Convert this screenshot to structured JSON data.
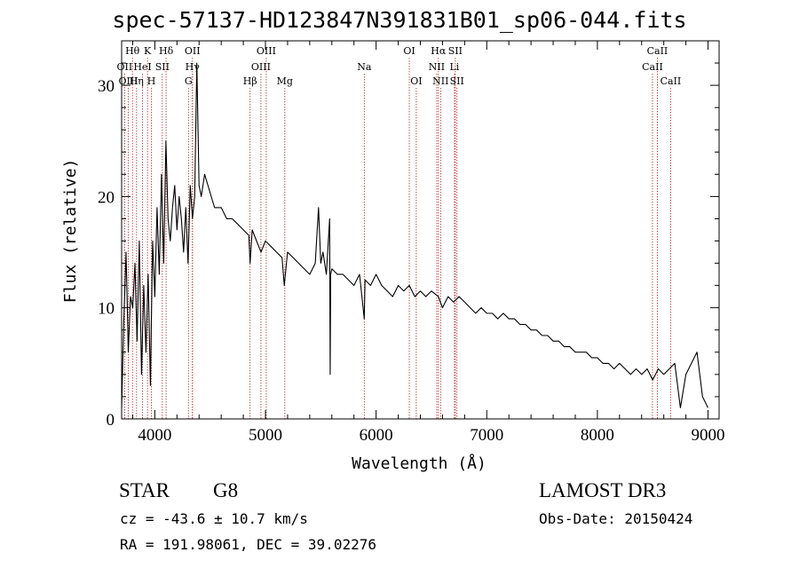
{
  "chart_data": {
    "type": "line",
    "title": "spec-57137-HD123847N391831B01_sp06-044.fits",
    "xlabel": "Wavelength (Å)",
    "ylabel": "Flux (relative)",
    "xlim": [
      3700,
      9100
    ],
    "ylim": [
      0,
      34
    ],
    "xticks": [
      4000,
      5000,
      6000,
      7000,
      8000,
      9000
    ],
    "xtick_labels": [
      "4000",
      "5000",
      "6000",
      "7000",
      "8000",
      "9000"
    ],
    "yticks": [
      0,
      10,
      20,
      30
    ],
    "ytick_labels": [
      "0",
      "10",
      "20",
      "30"
    ],
    "grid": false,
    "series": [
      {
        "name": "flux",
        "x": [
          3700,
          3720,
          3740,
          3760,
          3780,
          3800,
          3820,
          3840,
          3860,
          3880,
          3900,
          3920,
          3940,
          3960,
          3980,
          4000,
          4020,
          4040,
          4060,
          4080,
          4100,
          4120,
          4140,
          4160,
          4180,
          4200,
          4220,
          4240,
          4260,
          4280,
          4300,
          4320,
          4340,
          4360,
          4380,
          4400,
          4420,
          4450,
          4480,
          4510,
          4540,
          4570,
          4600,
          4650,
          4700,
          4750,
          4800,
          4850,
          4861,
          4880,
          4920,
          4960,
          5000,
          5050,
          5100,
          5150,
          5170,
          5200,
          5250,
          5300,
          5350,
          5400,
          5450,
          5480,
          5500,
          5520,
          5550,
          5580,
          5585,
          5590,
          5600,
          5650,
          5700,
          5750,
          5800,
          5850,
          5893,
          5900,
          5950,
          6000,
          6050,
          6100,
          6150,
          6200,
          6250,
          6300,
          6350,
          6400,
          6450,
          6500,
          6563,
          6600,
          6650,
          6700,
          6750,
          6800,
          6850,
          6900,
          6950,
          7000,
          7050,
          7100,
          7150,
          7200,
          7250,
          7300,
          7350,
          7400,
          7450,
          7500,
          7550,
          7600,
          7650,
          7700,
          7750,
          7800,
          7850,
          7900,
          7950,
          8000,
          8050,
          8100,
          8150,
          8200,
          8250,
          8300,
          8350,
          8400,
          8450,
          8500,
          8550,
          8600,
          8650,
          8700,
          8750,
          8800,
          8850,
          8900,
          8950,
          9000
        ],
        "values": [
          1,
          9,
          15,
          6,
          11,
          10,
          14,
          7,
          16,
          4,
          12,
          6,
          13,
          3,
          16,
          11,
          19,
          13,
          22,
          14,
          25,
          18,
          16,
          19,
          21,
          17,
          20,
          18,
          15,
          19,
          14,
          21,
          18,
          20,
          32,
          21,
          20,
          22,
          21,
          20,
          19,
          19,
          19,
          18,
          18,
          17.5,
          17,
          16.5,
          14,
          17,
          16,
          15,
          16,
          15.5,
          15,
          14.5,
          12,
          15,
          14.5,
          14,
          13.5,
          13,
          14,
          19,
          14,
          15,
          13,
          18,
          4,
          13,
          13.5,
          13,
          13,
          12.5,
          12,
          13,
          9,
          12.5,
          12,
          13,
          12,
          11.5,
          11,
          12,
          11.5,
          12,
          11,
          11.5,
          11,
          11.5,
          11,
          10,
          11,
          10.5,
          11,
          10.5,
          10,
          9.5,
          10,
          9.5,
          9.5,
          9,
          9.5,
          9,
          9,
          8.5,
          8.5,
          8,
          8,
          7.5,
          7.5,
          7,
          7,
          6.5,
          6.5,
          6,
          6,
          6,
          5.5,
          5.5,
          5,
          5,
          4.5,
          5,
          4.5,
          4,
          4.5,
          4,
          4.5,
          3.5,
          4.5,
          4,
          4.5,
          5,
          1,
          4,
          5,
          6,
          2,
          1
        ]
      }
    ],
    "line_markers": [
      {
        "label": "Hθ",
        "x": 3798,
        "row": 0
      },
      {
        "label": "K",
        "x": 3934,
        "row": 0
      },
      {
        "label": "Hδ",
        "x": 4102,
        "row": 0
      },
      {
        "label": "OII",
        "x": 4340,
        "row": 0
      },
      {
        "label": "OIII",
        "x": 5007,
        "row": 0
      },
      {
        "label": "OI",
        "x": 6300,
        "row": 0
      },
      {
        "label": "Hα",
        "x": 6563,
        "row": 0
      },
      {
        "label": "SII",
        "x": 6716,
        "row": 0
      },
      {
        "label": "CaII",
        "x": 8542,
        "row": 0
      },
      {
        "label": "OII",
        "x": 3727,
        "row": 1
      },
      {
        "label": "HeI",
        "x": 3889,
        "row": 1
      },
      {
        "label": "SII",
        "x": 4068,
        "row": 1
      },
      {
        "label": "Hγ",
        "x": 4340,
        "row": 1
      },
      {
        "label": "OIII",
        "x": 4959,
        "row": 1
      },
      {
        "label": "Na",
        "x": 5893,
        "row": 1
      },
      {
        "label": "NII",
        "x": 6548,
        "row": 1
      },
      {
        "label": "Li",
        "x": 6708,
        "row": 1
      },
      {
        "label": "CaII",
        "x": 8498,
        "row": 1
      },
      {
        "label": "OIII",
        "x": 3760,
        "row": 2
      },
      {
        "label": "Hη",
        "x": 3835,
        "row": 2
      },
      {
        "label": "H",
        "x": 3969,
        "row": 2
      },
      {
        "label": "G",
        "x": 4304,
        "row": 2
      },
      {
        "label": "Hβ",
        "x": 4861,
        "row": 2
      },
      {
        "label": "Mg",
        "x": 5175,
        "row": 2
      },
      {
        "label": "OI",
        "x": 6363,
        "row": 2
      },
      {
        "label": "NII",
        "x": 6583,
        "row": 2
      },
      {
        "label": "SII",
        "x": 6731,
        "row": 2
      },
      {
        "label": "CaII",
        "x": 8662,
        "row": 2
      }
    ],
    "colors": {
      "spectrum": "#000000",
      "marker_lines": "#b22222",
      "axes": "#000000"
    }
  },
  "info": {
    "object_class": "STAR",
    "subclass": "G8",
    "survey": "LAMOST DR3",
    "redshift": "cz = -43.6 ± 10.7 km/s",
    "obs_date": "Obs-Date: 20150424",
    "coords": "RA = 191.98061, DEC =  39.02276"
  }
}
